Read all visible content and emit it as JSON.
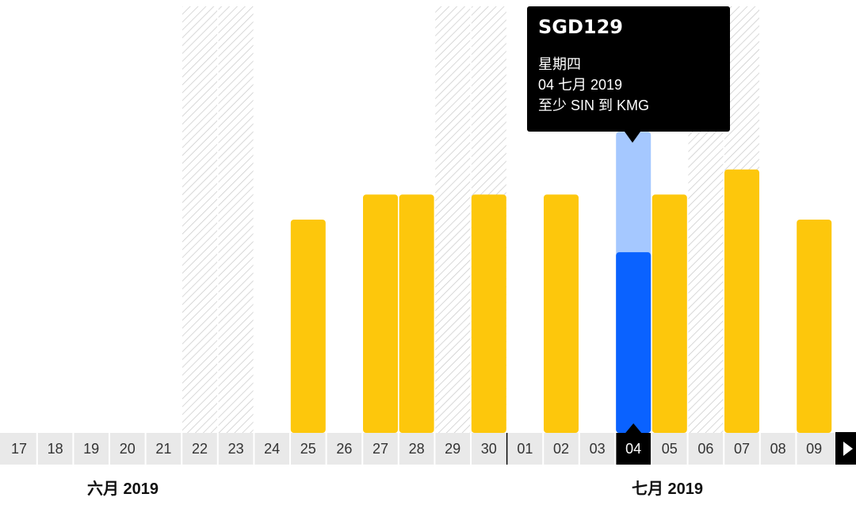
{
  "chart_data": {
    "type": "bar",
    "categories": [
      "17",
      "18",
      "19",
      "20",
      "21",
      "22",
      "23",
      "24",
      "25",
      "26",
      "27",
      "28",
      "29",
      "30",
      "01",
      "02",
      "03",
      "04",
      "05",
      "06",
      "07",
      "08",
      "09"
    ],
    "unavailable": [
      "22",
      "23",
      "29",
      "30",
      "06",
      "07"
    ],
    "values": [
      null,
      null,
      null,
      null,
      null,
      null,
      null,
      null,
      0.85,
      null,
      0.95,
      0.95,
      null,
      0.95,
      null,
      0.95,
      null,
      1.2,
      0.95,
      null,
      1.05,
      null,
      0.85
    ],
    "selected": "04",
    "selected_fill_fraction": 0.6,
    "ylim": [
      0,
      1.7
    ],
    "grid": false,
    "colors": {
      "bar": "#fdc70c",
      "selected_bar": "#0a62ff",
      "selected_bar_light": "#a5c8ff",
      "hatch": "#c8c8c8",
      "axis_bg": "#e9e9e9",
      "axis_selected_bg": "#000000"
    }
  },
  "tooltip": {
    "price": "SGD129",
    "weekday": "星期四",
    "date": "04 七月 2019",
    "route": "至少 SIN 到 KMG"
  },
  "months": {
    "june": "六月 2019",
    "july": "七月 2019"
  },
  "next_icon": "chevron-right-icon"
}
